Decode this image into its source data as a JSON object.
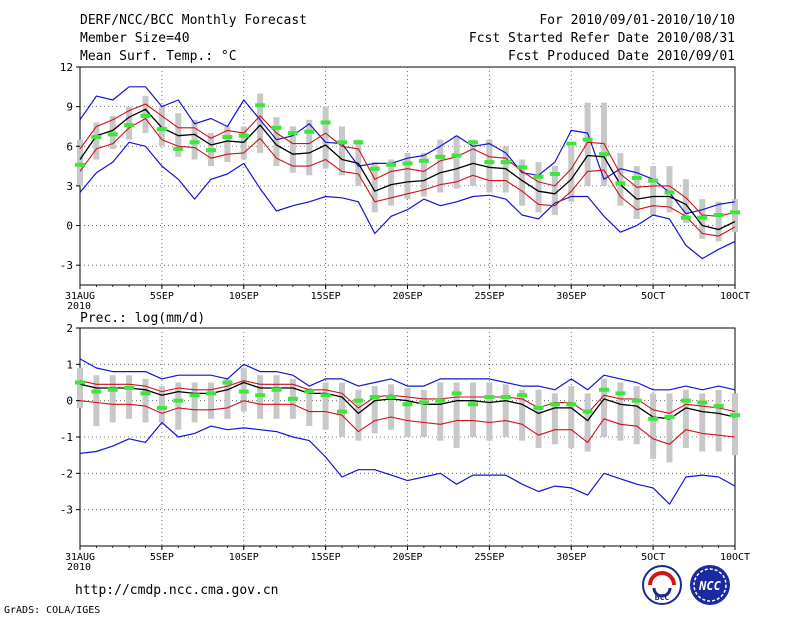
{
  "header": {
    "left_line1": "DERF/NCC/BCC Monthly Forecast",
    "left_line2": "Member Size=40",
    "left_line3": "Mean Surf. Temp.: °C",
    "right_line1": "For 2010/09/01-2010/10/10",
    "right_line2": "Fcst Started Refer Date 2010/08/31",
    "right_line3": "Fcst Produced Date 2010/09/01"
  },
  "panel2_title": "Prec.: log(mm/d)",
  "footer": {
    "url": "http://cmdp.ncc.cma.gov.cn",
    "credit": "GrADS: COLA/IGES",
    "logo_bcc": "BCC",
    "logo_ncc": "NCC"
  },
  "colors": {
    "mean": "#000000",
    "spread": "#d0101c",
    "envelope": "#1414d2",
    "member_box": "#c8c8c8",
    "climatology": "#3ce63c"
  },
  "chart_data": [
    {
      "type": "line",
      "title": "Mean Surf. Temp.: °C",
      "x_day_start": 0,
      "x_day_end": 40,
      "ylim": [
        -4.5,
        12
      ],
      "yticks": [
        -3,
        0,
        3,
        6,
        9,
        12
      ],
      "ytick_labels": [
        "-3",
        "0",
        "3",
        "6",
        "9",
        "12"
      ],
      "xtick_days": [
        0,
        5,
        10,
        15,
        20,
        25,
        30,
        35,
        40
      ],
      "xtick_labels": [
        "31AUG",
        "5SEP",
        "10SEP",
        "15SEP",
        "20SEP",
        "25SEP",
        "30SEP",
        "5OCT",
        "10OCT"
      ],
      "xtick_sublabel": "2010",
      "grid": true,
      "series": [
        {
          "name": "ensemble-max",
          "role": "envelope",
          "values": [
            8.0,
            9.8,
            9.5,
            10.5,
            10.5,
            9.0,
            9.5,
            7.7,
            8.1,
            7.5,
            9.5,
            8.0,
            6.5,
            6.8,
            7.7,
            6.3,
            6.2,
            4.5,
            4.7,
            4.7,
            5.1,
            5.3,
            6.0,
            6.8,
            6.0,
            6.2,
            5.5,
            4.0,
            3.8,
            4.8,
            7.2,
            7.0,
            3.5,
            4.3,
            4.0,
            3.5,
            2.5,
            0.9,
            1.2,
            1.6,
            1.8
          ]
        },
        {
          "name": "upper-spread",
          "role": "spread",
          "values": [
            5.8,
            7.5,
            8.0,
            8.7,
            9.2,
            8.3,
            7.4,
            7.4,
            6.6,
            7.2,
            7.0,
            8.3,
            7.0,
            6.2,
            6.2,
            7.0,
            6.0,
            5.8,
            3.5,
            4.1,
            4.3,
            4.1,
            4.9,
            5.2,
            5.8,
            5.2,
            5.1,
            4.1,
            3.3,
            3.0,
            4.3,
            6.3,
            6.2,
            3.9,
            2.9,
            3.0,
            3.0,
            2.1,
            0.8,
            0.7,
            1.0
          ]
        },
        {
          "name": "ensemble-mean",
          "role": "mean",
          "values": [
            5.0,
            6.8,
            7.2,
            8.2,
            8.8,
            7.4,
            6.8,
            6.9,
            6.1,
            6.4,
            6.3,
            7.6,
            6.1,
            5.4,
            5.5,
            6.1,
            5.0,
            4.7,
            2.6,
            3.1,
            3.3,
            3.4,
            4.0,
            4.3,
            4.7,
            4.4,
            4.3,
            3.4,
            2.6,
            2.4,
            3.5,
            5.3,
            5.2,
            3.1,
            2.0,
            2.2,
            2.2,
            1.6,
            0.0,
            -0.3,
            0.3
          ]
        },
        {
          "name": "lower-spread",
          "role": "spread",
          "values": [
            4.1,
            5.8,
            6.2,
            7.4,
            8.1,
            6.5,
            6.0,
            5.9,
            5.1,
            5.4,
            5.5,
            6.6,
            5.1,
            4.5,
            4.5,
            5.0,
            4.1,
            3.9,
            1.8,
            2.1,
            2.4,
            2.7,
            3.1,
            3.3,
            3.8,
            3.4,
            3.4,
            2.6,
            1.6,
            1.5,
            2.6,
            4.1,
            4.2,
            2.2,
            1.2,
            1.5,
            1.4,
            0.7,
            -0.6,
            -0.8,
            -0.1
          ]
        },
        {
          "name": "ensemble-min",
          "role": "envelope",
          "values": [
            2.5,
            4.0,
            4.8,
            6.3,
            6.0,
            4.5,
            3.5,
            2.0,
            3.5,
            3.9,
            4.7,
            2.8,
            1.1,
            1.5,
            1.8,
            2.2,
            2.1,
            1.8,
            -0.6,
            0.7,
            1.2,
            2.0,
            1.5,
            1.8,
            2.2,
            2.3,
            2.0,
            0.8,
            0.5,
            1.7,
            2.2,
            2.2,
            0.7,
            -0.5,
            0.0,
            0.8,
            0.5,
            -1.5,
            -2.5,
            -1.8,
            -1.2
          ]
        },
        {
          "name": "member-range-high",
          "role": "box",
          "values": [
            6.5,
            7.8,
            8.3,
            9.0,
            9.8,
            9.0,
            8.5,
            8.0,
            7.0,
            7.5,
            7.5,
            10.0,
            8.2,
            7.5,
            8.0,
            9.0,
            7.5,
            6.5,
            4.8,
            5.0,
            5.5,
            5.5,
            6.5,
            6.8,
            6.5,
            6.5,
            6.0,
            5.0,
            4.8,
            4.5,
            6.0,
            9.3,
            9.3,
            5.5,
            4.5,
            4.5,
            4.5,
            3.5,
            2.0,
            1.8,
            2.0
          ]
        },
        {
          "name": "member-range-low",
          "role": "box",
          "values": [
            3.0,
            5.0,
            5.8,
            6.5,
            7.0,
            6.0,
            5.2,
            5.0,
            4.5,
            4.8,
            5.0,
            5.5,
            4.5,
            4.0,
            3.8,
            4.3,
            3.8,
            3.0,
            1.0,
            1.5,
            2.0,
            2.2,
            2.5,
            2.8,
            3.0,
            2.5,
            2.5,
            1.5,
            1.0,
            0.8,
            1.8,
            3.0,
            3.0,
            1.5,
            0.5,
            0.8,
            1.0,
            0.2,
            -1.0,
            -1.2,
            -0.5
          ]
        },
        {
          "name": "climatology",
          "role": "marker",
          "values": [
            4.6,
            6.7,
            6.9,
            7.6,
            8.3,
            7.3,
            5.8,
            6.3,
            5.7,
            6.7,
            6.8,
            9.1,
            7.4,
            7.0,
            7.1,
            7.8,
            6.3,
            6.3,
            4.3,
            4.6,
            4.7,
            4.9,
            5.2,
            5.3,
            6.3,
            4.8,
            4.8,
            4.4,
            3.7,
            3.9,
            6.2,
            6.5,
            5.4,
            3.2,
            3.6,
            3.4,
            2.5,
            0.6,
            0.6,
            0.8,
            1.0
          ]
        }
      ]
    },
    {
      "type": "line",
      "title": "Prec.: log(mm/d)",
      "x_day_start": 0,
      "x_day_end": 40,
      "ylim": [
        -4,
        2
      ],
      "yticks": [
        -3,
        -2,
        -1,
        0,
        1,
        2
      ],
      "ytick_labels": [
        "-3",
        "-2",
        "-1",
        "0",
        "1",
        "2"
      ],
      "xtick_days": [
        0,
        5,
        10,
        15,
        20,
        25,
        30,
        35,
        40
      ],
      "xtick_labels": [
        "31AUG",
        "5SEP",
        "10SEP",
        "15SEP",
        "20SEP",
        "25SEP",
        "30SEP",
        "5OCT",
        "10OCT"
      ],
      "xtick_sublabel": "2010",
      "grid": true,
      "series": [
        {
          "name": "ensemble-max",
          "role": "envelope",
          "values": [
            1.15,
            0.9,
            0.8,
            0.8,
            0.8,
            0.6,
            0.7,
            0.7,
            0.7,
            0.6,
            1.0,
            0.8,
            0.8,
            0.7,
            0.4,
            0.6,
            0.6,
            0.4,
            0.5,
            0.6,
            0.4,
            0.4,
            0.6,
            0.6,
            0.6,
            0.6,
            0.5,
            0.4,
            0.4,
            0.3,
            0.6,
            0.3,
            0.7,
            0.6,
            0.5,
            0.3,
            0.3,
            0.4,
            0.3,
            0.4,
            0.3
          ]
        },
        {
          "name": "upper-spread",
          "role": "spread",
          "values": [
            0.55,
            0.45,
            0.45,
            0.45,
            0.4,
            0.25,
            0.35,
            0.3,
            0.3,
            0.4,
            0.55,
            0.45,
            0.45,
            0.45,
            0.3,
            0.3,
            0.2,
            -0.2,
            0.1,
            0.15,
            0.1,
            0.05,
            0.05,
            0.1,
            0.1,
            0.1,
            0.1,
            0.05,
            -0.2,
            -0.05,
            -0.05,
            -0.35,
            0.15,
            0.05,
            0.05,
            -0.25,
            -0.35,
            -0.1,
            -0.15,
            -0.2,
            -0.3
          ]
        },
        {
          "name": "ensemble-mean",
          "role": "mean",
          "values": [
            0.45,
            0.35,
            0.35,
            0.35,
            0.3,
            0.15,
            0.25,
            0.2,
            0.2,
            0.3,
            0.5,
            0.35,
            0.35,
            0.35,
            0.2,
            0.2,
            0.1,
            -0.35,
            0.0,
            0.05,
            0.0,
            -0.1,
            -0.1,
            0.0,
            0.0,
            -0.05,
            0.0,
            -0.1,
            -0.35,
            -0.2,
            -0.2,
            -0.55,
            0.05,
            -0.1,
            -0.15,
            -0.45,
            -0.5,
            -0.2,
            -0.3,
            -0.35,
            -0.45
          ]
        },
        {
          "name": "lower-spread",
          "role": "spread",
          "values": [
            0.0,
            -0.05,
            -0.1,
            -0.1,
            -0.15,
            -0.35,
            -0.2,
            -0.25,
            -0.25,
            -0.2,
            0.0,
            -0.1,
            -0.1,
            -0.1,
            -0.3,
            -0.3,
            -0.4,
            -0.85,
            -0.55,
            -0.45,
            -0.55,
            -0.6,
            -0.65,
            -0.55,
            -0.55,
            -0.6,
            -0.55,
            -0.65,
            -0.95,
            -0.8,
            -0.8,
            -1.15,
            -0.5,
            -0.65,
            -0.7,
            -1.05,
            -1.2,
            -0.8,
            -0.9,
            -0.95,
            -1.0
          ]
        },
        {
          "name": "ensemble-min",
          "role": "envelope",
          "values": [
            -1.45,
            -1.4,
            -1.25,
            -1.05,
            -1.15,
            -0.6,
            -1.0,
            -0.9,
            -0.7,
            -0.8,
            -0.75,
            -0.8,
            -0.85,
            -1.0,
            -1.1,
            -1.55,
            -2.1,
            -1.9,
            -1.9,
            -2.05,
            -2.2,
            -2.1,
            -2.0,
            -2.3,
            -2.05,
            -2.05,
            -2.05,
            -2.3,
            -2.5,
            -2.35,
            -2.4,
            -2.6,
            -2.0,
            -2.15,
            -2.3,
            -2.4,
            -2.85,
            -2.1,
            -2.05,
            -2.1,
            -2.35
          ]
        },
        {
          "name": "member-range-high",
          "role": "box",
          "values": [
            0.9,
            0.7,
            0.7,
            0.7,
            0.6,
            0.4,
            0.5,
            0.5,
            0.5,
            0.6,
            0.9,
            0.7,
            0.7,
            0.6,
            0.35,
            0.5,
            0.5,
            0.3,
            0.4,
            0.45,
            0.35,
            0.3,
            0.5,
            0.5,
            0.5,
            0.5,
            0.45,
            0.3,
            0.3,
            0.2,
            0.4,
            0.2,
            0.6,
            0.5,
            0.4,
            0.2,
            0.2,
            0.3,
            0.2,
            0.3,
            0.2
          ]
        },
        {
          "name": "member-range-low",
          "role": "box",
          "values": [
            -0.2,
            -0.7,
            -0.6,
            -0.5,
            -0.6,
            -0.6,
            -0.8,
            -0.6,
            -0.5,
            -0.5,
            -0.3,
            -0.5,
            -0.5,
            -0.5,
            -0.7,
            -0.8,
            -1.0,
            -1.1,
            -0.9,
            -0.8,
            -1.0,
            -1.0,
            -1.1,
            -1.3,
            -1.0,
            -1.1,
            -1.0,
            -1.1,
            -1.3,
            -1.2,
            -1.3,
            -1.4,
            -1.0,
            -1.1,
            -1.2,
            -1.6,
            -1.7,
            -1.3,
            -1.4,
            -1.4,
            -1.5
          ]
        },
        {
          "name": "climatology",
          "role": "marker",
          "values": [
            0.5,
            0.25,
            0.3,
            0.35,
            0.2,
            -0.2,
            0.0,
            0.15,
            0.2,
            0.5,
            0.25,
            0.15,
            0.3,
            0.05,
            0.25,
            0.15,
            -0.3,
            0.0,
            0.1,
            0.1,
            -0.1,
            -0.05,
            0.0,
            0.2,
            -0.1,
            0.1,
            0.1,
            0.15,
            -0.2,
            -0.1,
            -0.1,
            -0.3,
            0.3,
            0.2,
            0.0,
            -0.5,
            -0.45,
            0.0,
            -0.05,
            -0.15,
            -0.4
          ]
        }
      ]
    }
  ]
}
